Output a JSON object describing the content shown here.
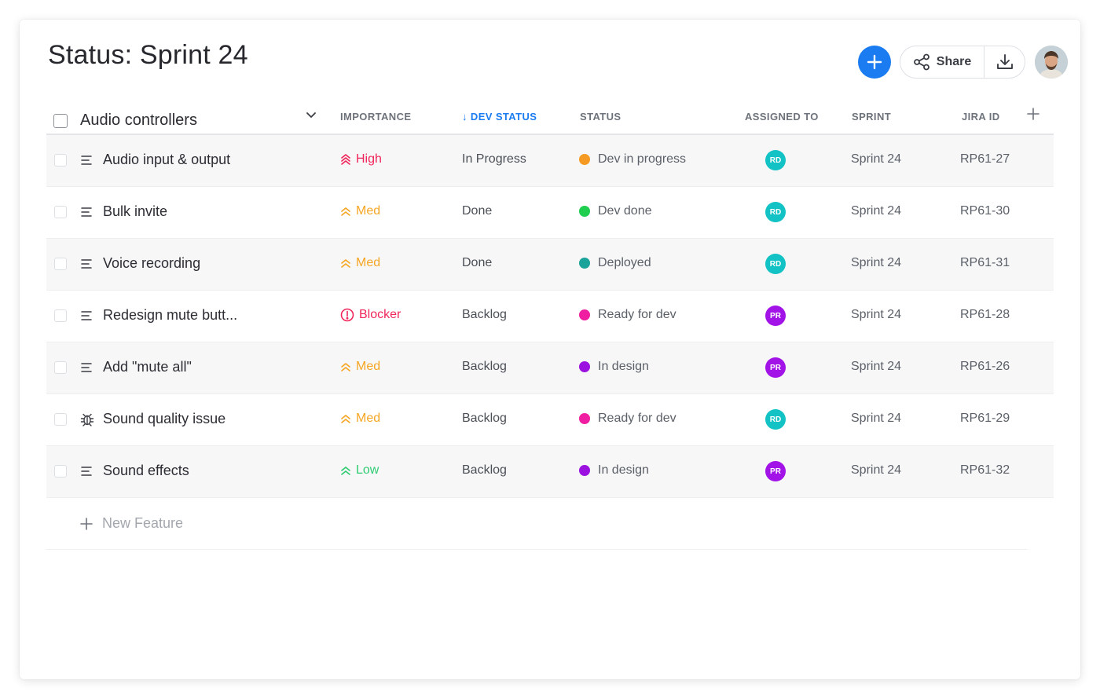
{
  "page": {
    "title": "Status: Sprint 24"
  },
  "toolbar": {
    "share_label": "Share"
  },
  "colors": {
    "accent": "#1a7cf0",
    "high": "#f0265a",
    "med": "#f5a623",
    "low": "#2ecc71",
    "blocker": "#f0265a"
  },
  "table": {
    "group_name": "Audio controllers",
    "headers": {
      "importance": "IMPORTANCE",
      "dev_status": "↓ DEV STATUS",
      "status": "STATUS",
      "assigned_to": "ASSIGNED TO",
      "sprint": "SPRINT",
      "jira_id": "JIRA ID"
    },
    "rows": [
      {
        "name": "Audio input & output",
        "icon": "lines-icon",
        "importance": "High",
        "importance_level": "high",
        "dev_status": "In Progress",
        "status": "Dev in progress",
        "status_color": "#f59a23",
        "assignee": "RD",
        "assignee_color": "#12c2c4",
        "sprint": "Sprint 24",
        "jira": "RP61-27"
      },
      {
        "name": "Bulk invite",
        "icon": "lines-icon",
        "importance": "Med",
        "importance_level": "med",
        "dev_status": "Done",
        "status": "Dev done",
        "status_color": "#1fce4e",
        "assignee": "RD",
        "assignee_color": "#12c2c4",
        "sprint": "Sprint 24",
        "jira": "RP61-30"
      },
      {
        "name": "Voice recording",
        "icon": "lines-icon",
        "importance": "Med",
        "importance_level": "med",
        "dev_status": "Done",
        "status": "Deployed",
        "status_color": "#1aa39a",
        "assignee": "RD",
        "assignee_color": "#12c2c4",
        "sprint": "Sprint 24",
        "jira": "RP61-31"
      },
      {
        "name": "Redesign mute butt...",
        "icon": "lines-icon",
        "importance": "Blocker",
        "importance_level": "blocker",
        "dev_status": "Backlog",
        "status": "Ready for dev",
        "status_color": "#f01ea0",
        "assignee": "PR",
        "assignee_color": "#a113e6",
        "sprint": "Sprint 24",
        "jira": "RP61-28"
      },
      {
        "name": "Add \"mute all\"",
        "icon": "lines-icon",
        "importance": "Med",
        "importance_level": "med",
        "dev_status": "Backlog",
        "status": "In design",
        "status_color": "#9b12e0",
        "assignee": "PR",
        "assignee_color": "#a113e6",
        "sprint": "Sprint 24",
        "jira": "RP61-26"
      },
      {
        "name": "Sound quality issue",
        "icon": "bug-icon",
        "importance": "Med",
        "importance_level": "med",
        "dev_status": "Backlog",
        "status": "Ready for dev",
        "status_color": "#f01ea0",
        "assignee": "RD",
        "assignee_color": "#12c2c4",
        "sprint": "Sprint 24",
        "jira": "RP61-29"
      },
      {
        "name": "Sound effects",
        "icon": "lines-icon",
        "importance": "Low",
        "importance_level": "low",
        "dev_status": "Backlog",
        "status": "In design",
        "status_color": "#9b12e0",
        "assignee": "PR",
        "assignee_color": "#a113e6",
        "sprint": "Sprint 24",
        "jira": "RP61-32"
      }
    ],
    "new_row_label": "New Feature"
  }
}
